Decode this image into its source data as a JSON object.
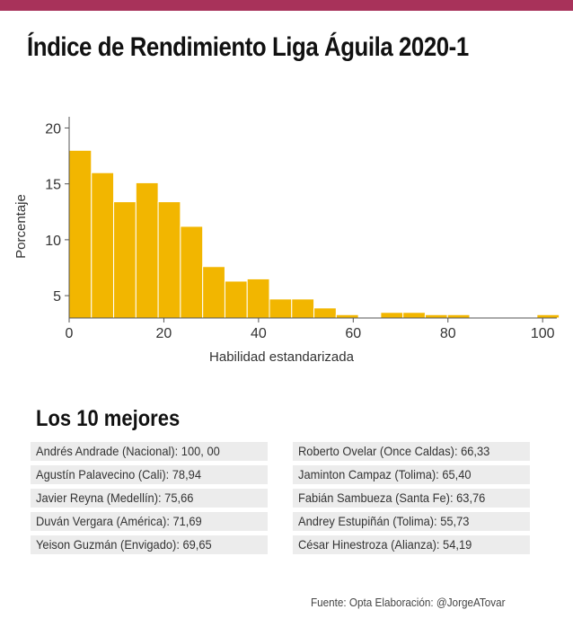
{
  "title": "Índice de Rendimiento Liga Águila 2020-1",
  "subtitle": "Los 10 mejores",
  "source": "Fuente: Opta Elaboración: @JorgeATovar",
  "colors": {
    "bar": "#f2b600",
    "topbar": "#a8325a",
    "row_bg": "#ececec"
  },
  "chart_data": {
    "type": "bar",
    "xlabel": "Habilidad estandarizada",
    "ylabel": "Porcentaje",
    "x_ticks": [
      0,
      20,
      40,
      60,
      80,
      100
    ],
    "y_ticks": [
      5,
      10,
      15,
      20
    ],
    "xlim": [
      0,
      103
    ],
    "ylim": [
      3,
      21
    ],
    "bin_width": 4.7,
    "bins": [
      {
        "x0": 0.0,
        "x1": 4.7,
        "value": 18.0
      },
      {
        "x0": 4.7,
        "x1": 9.4,
        "value": 16.0
      },
      {
        "x0": 9.4,
        "x1": 14.1,
        "value": 13.4
      },
      {
        "x0": 14.1,
        "x1": 18.8,
        "value": 15.1
      },
      {
        "x0": 18.8,
        "x1": 23.5,
        "value": 13.4
      },
      {
        "x0": 23.5,
        "x1": 28.2,
        "value": 11.2
      },
      {
        "x0": 28.2,
        "x1": 32.9,
        "value": 7.6
      },
      {
        "x0": 32.9,
        "x1": 37.6,
        "value": 6.3
      },
      {
        "x0": 37.6,
        "x1": 42.3,
        "value": 6.5
      },
      {
        "x0": 42.3,
        "x1": 47.0,
        "value": 4.7
      },
      {
        "x0": 47.0,
        "x1": 51.7,
        "value": 4.7
      },
      {
        "x0": 51.7,
        "x1": 56.4,
        "value": 3.9
      },
      {
        "x0": 56.4,
        "x1": 61.1,
        "value": 3.3
      },
      {
        "x0": 65.8,
        "x1": 70.5,
        "value": 3.5
      },
      {
        "x0": 70.5,
        "x1": 75.2,
        "value": 3.5
      },
      {
        "x0": 75.2,
        "x1": 79.9,
        "value": 3.3
      },
      {
        "x0": 79.9,
        "x1": 84.6,
        "value": 3.3
      },
      {
        "x0": 98.8,
        "x1": 103.5,
        "value": 3.3
      }
    ]
  },
  "top10": {
    "left": [
      "Andrés Andrade (Nacional): 100, 00",
      "Agustín Palavecino (Cali): 78,94",
      "Javier Reyna (Medellín): 75,66",
      "Duván Vergara (América): 71,69",
      "Yeison Guzmán (Envigado): 69,65"
    ],
    "right": [
      "Roberto Ovelar (Once Caldas): 66,33",
      "Jaminton Campaz (Tolima): 65,40",
      "Fabián Sambueza (Santa Fe): 63,76",
      "Andrey Estupiñán (Tolima): 55,73",
      "César Hinestroza (Alianza): 54,19"
    ]
  }
}
